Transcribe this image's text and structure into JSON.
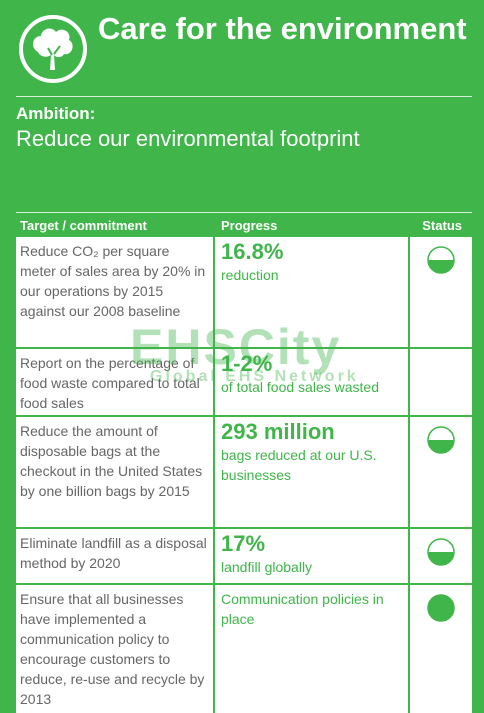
{
  "header": {
    "title": "Care for the environment",
    "ambition_label": "Ambition:",
    "ambition": "Reduce our environmental footprint"
  },
  "table": {
    "columns": [
      "Target / commitment",
      "Progress",
      "Status"
    ],
    "rows": [
      {
        "target": "Reduce CO₂ per square meter of sales area by 20% in our operations by 2015 against our 2008 baseline",
        "progress": "16.8%",
        "progress_note": "reduction",
        "status": "half"
      },
      {
        "target": "Report on the percentage of food waste compared to total food sales",
        "progress": "1-2%",
        "progress_note": "of total food sales wasted",
        "status": null
      },
      {
        "target": "Reduce the amount of disposable bags at the checkout in the United States by one billion bags by 2015",
        "progress": "293 million",
        "progress_note": "bags reduced at our U.S. businesses",
        "status": "half"
      },
      {
        "target": "Eliminate landfill as a disposal method by 2020",
        "progress": "17%",
        "progress_note": "landfill globally",
        "status": "half"
      },
      {
        "target": "Ensure that all businesses have implemented a communication policy to encourage customers to reduce, re-use and recycle by 2013",
        "progress": null,
        "progress_note": "Communication policies in place",
        "status": "full"
      }
    ]
  },
  "watermark": {
    "title": "EHSCity",
    "subtitle": "Global EHS Network"
  }
}
